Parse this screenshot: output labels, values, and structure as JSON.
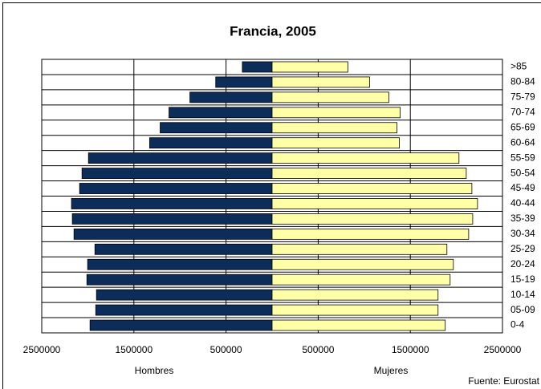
{
  "chart_data": {
    "type": "pyramid",
    "title": "Francia, 2005",
    "categories": [
      "0-4",
      "05-09",
      "10-14",
      "15-19",
      "20-24",
      "25-29",
      "30-34",
      "35-39",
      "40-44",
      "45-49",
      "50-54",
      "55-59",
      "60-64",
      "65-69",
      "70-74",
      "75-79",
      "80-84",
      ">85"
    ],
    "series": [
      {
        "name": "Hombres",
        "color": "#0c2d5a",
        "values": [
          -1976000,
          -1914000,
          -1906000,
          -2010000,
          -2002000,
          -1923000,
          -2150000,
          -2168000,
          -2177000,
          -2089000,
          -2063000,
          -1993000,
          -1329000,
          -1215000,
          -1119000,
          -892000,
          -612000,
          -323000
        ]
      },
      {
        "name": "Mujeres",
        "color": "#ffffa8",
        "values": [
          1879000,
          1801000,
          1801000,
          1932000,
          1967000,
          1897000,
          2133000,
          2177000,
          2229000,
          2168000,
          2107000,
          2028000,
          1381000,
          1355000,
          1390000,
          1267000,
          1058000,
          822000
        ]
      }
    ],
    "xlim": [
      -2500000,
      2500000
    ],
    "xticks": [
      {
        "value": -2500000,
        "label": "2500000"
      },
      {
        "value": -1500000,
        "label": "1500000"
      },
      {
        "value": -500000,
        "label": "500000"
      },
      500000,
      1500000,
      2500000
    ],
    "grid": true,
    "source": "Fuente: Eurostat"
  }
}
